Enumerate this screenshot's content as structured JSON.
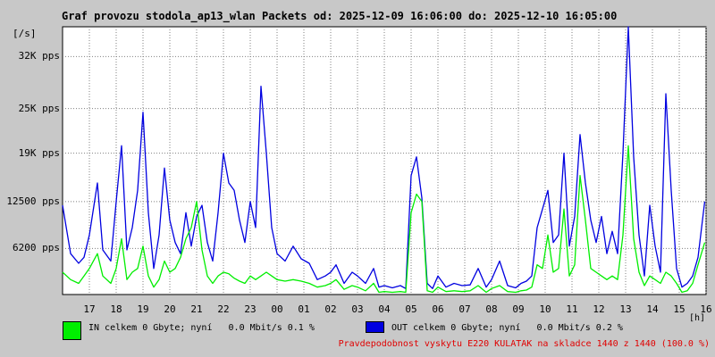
{
  "chart_data": {
    "type": "line",
    "title": "Graf provozu stodola_ap13_wlan Packets od: 2025-12-09 16:06:00 do: 2025-12-10 16:05:00",
    "ylabel": "[/s]",
    "xlabel": "[h]",
    "ylim": [
      0,
      36000
    ],
    "xlim": [
      16,
      40
    ],
    "grid": true,
    "y_ticks": [
      {
        "value": 6200,
        "label": "6200 pps"
      },
      {
        "value": 12500,
        "label": "12500 pps"
      },
      {
        "value": 19000,
        "label": "19K pps"
      },
      {
        "value": 25000,
        "label": "25K pps"
      },
      {
        "value": 32000,
        "label": "32K pps"
      }
    ],
    "x_ticks": [
      {
        "value": 17,
        "label": "17"
      },
      {
        "value": 18,
        "label": "18"
      },
      {
        "value": 19,
        "label": "19"
      },
      {
        "value": 20,
        "label": "20"
      },
      {
        "value": 21,
        "label": "21"
      },
      {
        "value": 22,
        "label": "22"
      },
      {
        "value": 23,
        "label": "23"
      },
      {
        "value": 24,
        "label": "00"
      },
      {
        "value": 25,
        "label": "01"
      },
      {
        "value": 26,
        "label": "02"
      },
      {
        "value": 27,
        "label": "03"
      },
      {
        "value": 28,
        "label": "04"
      },
      {
        "value": 29,
        "label": "05"
      },
      {
        "value": 30,
        "label": "06"
      },
      {
        "value": 31,
        "label": "07"
      },
      {
        "value": 32,
        "label": "08"
      },
      {
        "value": 33,
        "label": "09"
      },
      {
        "value": 34,
        "label": "10"
      },
      {
        "value": 35,
        "label": "11"
      },
      {
        "value": 36,
        "label": "12"
      },
      {
        "value": 37,
        "label": "13"
      },
      {
        "value": 38,
        "label": "14"
      },
      {
        "value": 39,
        "label": "15"
      },
      {
        "value": 40,
        "label": "16"
      }
    ],
    "series": [
      {
        "name": "OUT",
        "color": "#0000e0",
        "x": [
          16.0,
          16.3,
          16.6,
          16.8,
          17.0,
          17.3,
          17.5,
          17.8,
          18.0,
          18.2,
          18.4,
          18.6,
          18.8,
          19.0,
          19.2,
          19.4,
          19.6,
          19.8,
          20.0,
          20.2,
          20.4,
          20.6,
          20.8,
          21.0,
          21.2,
          21.4,
          21.6,
          21.8,
          22.0,
          22.2,
          22.4,
          22.6,
          22.8,
          23.0,
          23.2,
          23.4,
          23.6,
          23.8,
          24.0,
          24.3,
          24.6,
          24.9,
          25.2,
          25.5,
          25.8,
          26.0,
          26.2,
          26.5,
          26.8,
          27.0,
          27.3,
          27.6,
          27.8,
          28.0,
          28.3,
          28.6,
          28.8,
          29.0,
          29.2,
          29.4,
          29.6,
          29.8,
          30.0,
          30.3,
          30.6,
          30.9,
          31.2,
          31.5,
          31.8,
          32.0,
          32.3,
          32.6,
          32.9,
          33.1,
          33.3,
          33.5,
          33.7,
          33.9,
          34.1,
          34.3,
          34.5,
          34.7,
          34.9,
          35.1,
          35.3,
          35.5,
          35.7,
          35.9,
          36.1,
          36.3,
          36.5,
          36.7,
          36.9,
          37.1,
          37.3,
          37.5,
          37.7,
          37.9,
          38.1,
          38.3,
          38.5,
          38.7,
          38.9,
          39.1,
          39.3,
          39.5,
          39.7,
          39.95
        ],
        "values": [
          12000,
          5500,
          4200,
          5000,
          8000,
          15000,
          6000,
          4500,
          12500,
          20000,
          6000,
          9000,
          14000,
          24500,
          11000,
          3500,
          8000,
          17000,
          10000,
          7000,
          5500,
          11000,
          6500,
          10500,
          12000,
          7000,
          4500,
          11000,
          19000,
          15000,
          14000,
          10000,
          7000,
          12500,
          9000,
          28000,
          19000,
          9000,
          5500,
          4500,
          6500,
          4800,
          4200,
          2000,
          2500,
          3000,
          4000,
          1500,
          3000,
          2500,
          1500,
          3500,
          1000,
          1200,
          900,
          1200,
          800,
          16000,
          18500,
          13000,
          1500,
          800,
          2500,
          1000,
          1500,
          1200,
          1300,
          3500,
          1000,
          2000,
          4500,
          1200,
          900,
          1500,
          1800,
          2500,
          9000,
          11500,
          14000,
          7000,
          8000,
          19000,
          6500,
          10500,
          21500,
          15000,
          10000,
          7000,
          10500,
          5500,
          8500,
          5500,
          19000,
          36000,
          18500,
          8000,
          2500,
          12000,
          6500,
          3000,
          27000,
          14000,
          3500,
          1000,
          1500,
          2500,
          5000,
          12500
        ]
      },
      {
        "name": "IN",
        "color": "#00ee00",
        "x": [
          16.0,
          16.3,
          16.6,
          16.8,
          17.0,
          17.3,
          17.5,
          17.8,
          18.0,
          18.2,
          18.4,
          18.6,
          18.8,
          19.0,
          19.2,
          19.4,
          19.6,
          19.8,
          20.0,
          20.2,
          20.4,
          20.6,
          20.8,
          21.0,
          21.2,
          21.4,
          21.6,
          21.8,
          22.0,
          22.2,
          22.4,
          22.6,
          22.8,
          23.0,
          23.2,
          23.4,
          23.6,
          23.8,
          24.0,
          24.3,
          24.6,
          24.9,
          25.2,
          25.5,
          25.8,
          26.0,
          26.2,
          26.5,
          26.8,
          27.0,
          27.3,
          27.6,
          27.8,
          28.0,
          28.3,
          28.6,
          28.8,
          29.0,
          29.2,
          29.4,
          29.6,
          29.8,
          30.0,
          30.3,
          30.6,
          30.9,
          31.2,
          31.5,
          31.8,
          32.0,
          32.3,
          32.6,
          32.9,
          33.1,
          33.3,
          33.5,
          33.7,
          33.9,
          34.1,
          34.3,
          34.5,
          34.7,
          34.9,
          35.1,
          35.3,
          35.5,
          35.7,
          35.9,
          36.1,
          36.3,
          36.5,
          36.7,
          36.9,
          37.1,
          37.3,
          37.5,
          37.7,
          37.9,
          38.1,
          38.3,
          38.5,
          38.7,
          38.9,
          39.1,
          39.3,
          39.5,
          39.7,
          39.95
        ],
        "values": [
          3000,
          2000,
          1500,
          2500,
          3500,
          5500,
          2500,
          1500,
          3500,
          7500,
          2000,
          3000,
          3500,
          6500,
          2500,
          1000,
          2000,
          4500,
          3000,
          3500,
          5000,
          7500,
          9000,
          12500,
          6000,
          2500,
          1500,
          2500,
          3000,
          2800,
          2200,
          1800,
          1500,
          2500,
          2000,
          2500,
          3000,
          2500,
          2000,
          1800,
          2000,
          1800,
          1500,
          1000,
          1200,
          1500,
          2000,
          700,
          1200,
          1000,
          500,
          1500,
          300,
          400,
          300,
          400,
          300,
          11000,
          13500,
          12500,
          500,
          300,
          1000,
          400,
          500,
          400,
          500,
          1200,
          300,
          800,
          1200,
          400,
          300,
          500,
          600,
          1000,
          4000,
          3500,
          8000,
          3000,
          3500,
          11500,
          2500,
          4000,
          16000,
          10000,
          3500,
          3000,
          2500,
          2000,
          2500,
          2000,
          8000,
          20000,
          7500,
          3000,
          1200,
          2500,
          2000,
          1500,
          3000,
          2500,
          1500,
          300,
          500,
          1500,
          4000,
          7000
        ]
      }
    ],
    "legend": {
      "placement": "bottom-left",
      "in_text": "IN celkem 0 Gbyte; nyní   0.0 Mbit/s 0.1 %",
      "out_text": "OUT celkem 0 Gbyte; nyní   0.0 Mbit/s 0.2 %",
      "in_color": "#00ee00",
      "out_color": "#0000e0"
    },
    "note": "Pravdepodobnost vyskytu E220 KULATAK na skladce 1440 z 1440 (100.0 %)"
  }
}
